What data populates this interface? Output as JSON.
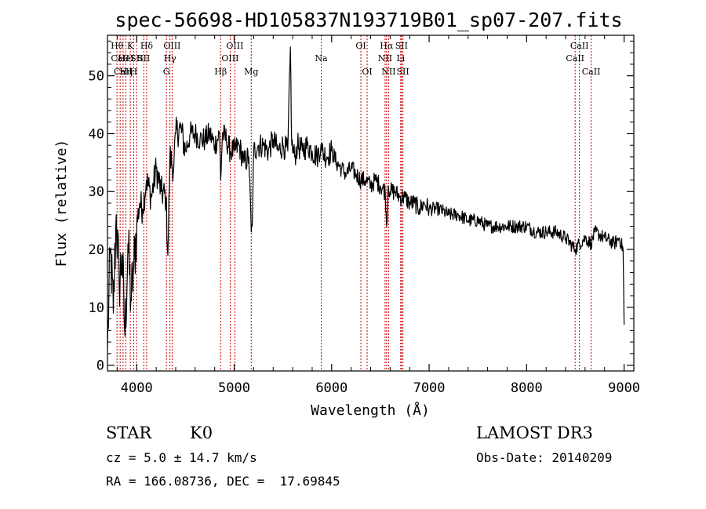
{
  "chart_data": {
    "type": "line",
    "title": "spec-56698-HD105837N193719B01_sp07-207.fits",
    "xlabel": "Wavelength (Å)",
    "ylabel": "Flux (relative)",
    "xlim": [
      3700,
      9100
    ],
    "ylim": [
      -1,
      57
    ],
    "xticks": [
      4000,
      5000,
      6000,
      7000,
      8000,
      9000
    ],
    "yticks": [
      0,
      10,
      20,
      30,
      40,
      50
    ],
    "grid": false,
    "series": [
      {
        "name": "flux",
        "color": "#000000",
        "x": [
          3700,
          3730,
          3760,
          3790,
          3820,
          3850,
          3880,
          3910,
          3940,
          3970,
          4000,
          4030,
          4060,
          4100,
          4150,
          4200,
          4250,
          4300,
          4320,
          4340,
          4380,
          4400,
          4450,
          4500,
          4550,
          4600,
          4650,
          4700,
          4750,
          4800,
          4850,
          4861,
          4880,
          4920,
          4960,
          5000,
          5050,
          5100,
          5150,
          5175,
          5185,
          5200,
          5250,
          5300,
          5350,
          5400,
          5450,
          5500,
          5550,
          5577,
          5590,
          5620,
          5650,
          5700,
          5750,
          5800,
          5850,
          5890,
          5900,
          5950,
          6000,
          6050,
          6100,
          6150,
          6200,
          6250,
          6300,
          6350,
          6400,
          6450,
          6500,
          6550,
          6563,
          6580,
          6600,
          6650,
          6700,
          6750,
          6800,
          6850,
          6900,
          6950,
          7000,
          7100,
          7200,
          7300,
          7400,
          7500,
          7600,
          7700,
          7800,
          7900,
          8000,
          8100,
          8200,
          8300,
          8400,
          8498,
          8542,
          8600,
          8662,
          8700,
          8800,
          8900,
          8950,
          8990,
          9000
        ],
        "y": [
          3,
          20,
          9,
          26,
          14,
          19,
          5,
          21,
          11,
          17,
          24,
          28,
          27,
          32,
          29,
          34,
          30,
          29,
          19,
          36,
          34,
          40,
          41,
          37,
          40,
          40,
          39,
          39,
          40,
          38,
          40,
          32,
          40,
          39,
          37,
          37,
          38,
          35,
          36,
          23,
          24,
          37,
          38,
          38,
          37,
          39,
          37,
          38,
          37,
          55,
          38,
          36,
          38,
          37,
          38,
          37,
          36,
          38,
          37,
          36,
          37,
          35,
          34,
          33,
          34,
          33,
          32,
          32,
          31,
          32,
          31,
          30,
          24,
          31,
          30,
          30,
          29,
          29,
          28,
          28,
          27,
          28,
          27,
          27,
          26,
          26,
          25,
          25,
          24,
          24,
          24,
          24,
          24,
          23,
          23,
          23,
          22,
          20,
          21,
          22,
          21,
          23,
          22,
          21,
          22,
          20,
          7
        ]
      }
    ],
    "annotations": [
      {
        "label": "Hθ",
        "x": 3798,
        "row": 1
      },
      {
        "label": "CaII",
        "x": 3830,
        "row": 2
      },
      {
        "label": "CaII",
        "x": 3860,
        "row": 3
      },
      {
        "label": "HeI",
        "x": 3889,
        "row": 2
      },
      {
        "label": "Hη",
        "x": 3889,
        "row": 3
      },
      {
        "label": "K",
        "x": 3934,
        "row": 1
      },
      {
        "label": "H",
        "x": 3969,
        "row": 3
      },
      {
        "label": "SII",
        "x": 4000,
        "row": 2
      },
      {
        "label": "Hδ",
        "x": 4102,
        "row": 1
      },
      {
        "label": "SII",
        "x": 4072,
        "row": 2
      },
      {
        "label": "OIII",
        "x": 4363,
        "row": 1
      },
      {
        "label": "Hγ",
        "x": 4341,
        "row": 2
      },
      {
        "label": "G",
        "x": 4305,
        "row": 3
      },
      {
        "label": "Hβ",
        "x": 4861,
        "row": 3
      },
      {
        "label": "OIII",
        "x": 5007,
        "row": 1
      },
      {
        "label": "OIII",
        "x": 4959,
        "row": 2
      },
      {
        "label": "Mg",
        "x": 5175,
        "row": 3
      },
      {
        "label": "Na",
        "x": 5893,
        "row": 2
      },
      {
        "label": "OI",
        "x": 6300,
        "row": 1
      },
      {
        "label": "OI",
        "x": 6364,
        "row": 3
      },
      {
        "label": "Hα",
        "x": 6563,
        "row": 1
      },
      {
        "label": "NII",
        "x": 6548,
        "row": 2
      },
      {
        "label": "NII",
        "x": 6584,
        "row": 3
      },
      {
        "label": "SII",
        "x": 6717,
        "row": 1
      },
      {
        "label": "Li",
        "x": 6708,
        "row": 2
      },
      {
        "label": "SII",
        "x": 6731,
        "row": 3
      },
      {
        "label": "CaII",
        "x": 8542,
        "row": 1
      },
      {
        "label": "CaII",
        "x": 8498,
        "row": 2
      },
      {
        "label": "CaII",
        "x": 8662,
        "row": 3
      }
    ]
  },
  "info": {
    "class": "STAR",
    "subclass": "K0",
    "survey": "LAMOST DR3",
    "redshift": "cz = 5.0 ± 14.7 km/s",
    "obs_date": "Obs-Date: 20140209",
    "coords": "RA = 166.08736, DEC =  17.69845"
  },
  "colors": {
    "line": "#000000",
    "marker": "#cc0000",
    "background": "#ffffff"
  }
}
